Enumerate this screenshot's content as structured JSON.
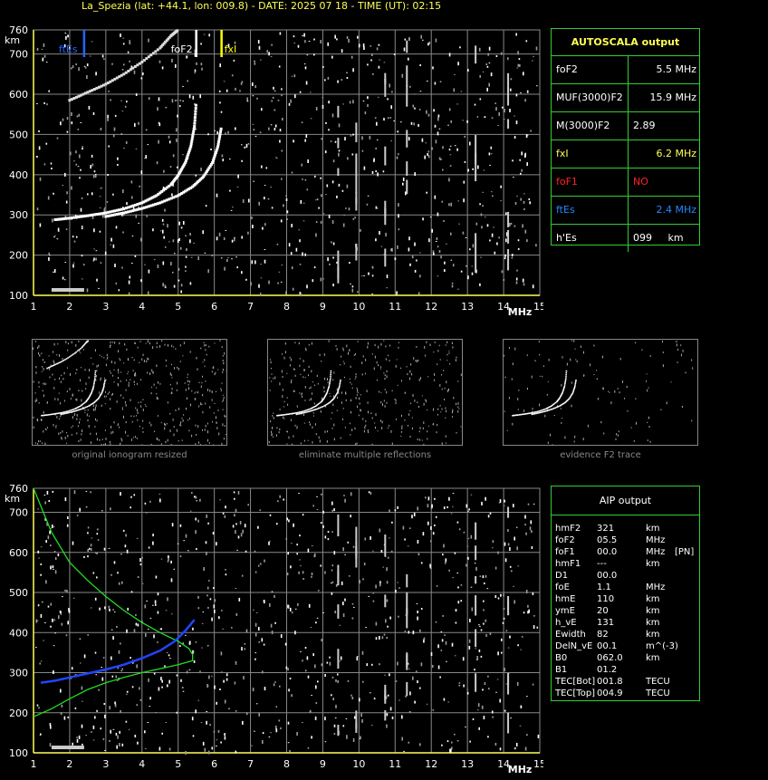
{
  "header": "La_Spezia (lat: +44.1, lon: 009.8) - DATE: 2025 07 18 - TIME (UT): 02:15",
  "colors": {
    "axis": "#ffff55",
    "grid": "#888888",
    "trace": "#ffffff",
    "profile": "#22dd22",
    "blue": "#2244ff",
    "fxi": "#ffff00",
    "ftes": "#2266ff",
    "fof1": "#ff2222",
    "white": "#ffffff"
  },
  "chart_data": [
    {
      "type": "scatter",
      "title": "",
      "xlabel": "MHz",
      "ylabel": "km",
      "xlim": [
        1,
        15
      ],
      "ylim": [
        100,
        760
      ],
      "xticks": [
        "1",
        "2",
        "3",
        "4",
        "5",
        "6",
        "7",
        "8",
        "9",
        "10",
        "11",
        "12",
        "13",
        "14",
        "15"
      ],
      "yticks": [
        "760",
        "700",
        "600",
        "500",
        "400",
        "300",
        "200",
        "100"
      ],
      "markers": [
        {
          "label": "ftEs",
          "x": 2.4,
          "color": "#2266ff"
        },
        {
          "label": "foF2",
          "x": 5.5,
          "color": "#ffffff"
        },
        {
          "label": "fxI",
          "x": 6.2,
          "color": "#ffff00"
        }
      ],
      "traces": [
        {
          "name": "o-trace",
          "points": [
            [
              1.6,
              288
            ],
            [
              2.0,
              292
            ],
            [
              2.5,
              298
            ],
            [
              3.0,
              305
            ],
            [
              3.5,
              315
            ],
            [
              4.0,
              330
            ],
            [
              4.4,
              348
            ],
            [
              4.8,
              375
            ],
            [
              5.0,
              398
            ],
            [
              5.2,
              430
            ],
            [
              5.35,
              470
            ],
            [
              5.45,
              520
            ],
            [
              5.5,
              580
            ]
          ]
        },
        {
          "name": "x-trace",
          "points": [
            [
              3.0,
              296
            ],
            [
              3.5,
              305
            ],
            [
              4.0,
              316
            ],
            [
              4.5,
              330
            ],
            [
              5.0,
              348
            ],
            [
              5.4,
              370
            ],
            [
              5.7,
              395
            ],
            [
              5.95,
              430
            ],
            [
              6.1,
              470
            ],
            [
              6.2,
              520
            ]
          ]
        },
        {
          "name": "second-hop",
          "points": [
            [
              2.0,
              585
            ],
            [
              2.5,
              605
            ],
            [
              3.0,
              625
            ],
            [
              3.5,
              650
            ],
            [
              4.0,
              680
            ],
            [
              4.5,
              715
            ],
            [
              4.8,
              745
            ],
            [
              5.0,
              760
            ]
          ]
        }
      ]
    },
    {
      "type": "scatter",
      "title": "",
      "xlabel": "MHz",
      "ylabel": "km",
      "xlim": [
        1,
        15
      ],
      "ylim": [
        100,
        760
      ],
      "xticks": [
        "1",
        "2",
        "3",
        "4",
        "5",
        "6",
        "7",
        "8",
        "9",
        "10",
        "11",
        "12",
        "13",
        "14",
        "15"
      ],
      "yticks": [
        "760",
        "700",
        "600",
        "500",
        "400",
        "300",
        "200",
        "100"
      ],
      "profile_green": [
        [
          1.0,
          760
        ],
        [
          1.5,
          650
        ],
        [
          2.0,
          575
        ],
        [
          2.5,
          530
        ],
        [
          3.0,
          490
        ],
        [
          3.5,
          455
        ],
        [
          4.0,
          425
        ],
        [
          4.5,
          400
        ],
        [
          5.0,
          378
        ],
        [
          5.3,
          360
        ],
        [
          5.4,
          345
        ],
        [
          5.4,
          330
        ],
        [
          5.0,
          320
        ],
        [
          4.5,
          310
        ],
        [
          4.0,
          300
        ],
        [
          3.5,
          288
        ],
        [
          3.0,
          275
        ],
        [
          2.5,
          258
        ],
        [
          2.0,
          235
        ],
        [
          1.5,
          210
        ],
        [
          1.0,
          190
        ]
      ],
      "profile_blue": [
        [
          1.2,
          275
        ],
        [
          1.6,
          280
        ],
        [
          2.0,
          288
        ],
        [
          2.5,
          298
        ],
        [
          3.0,
          308
        ],
        [
          3.5,
          320
        ],
        [
          4.0,
          336
        ],
        [
          4.5,
          355
        ],
        [
          4.9,
          378
        ],
        [
          5.2,
          405
        ],
        [
          5.45,
          432
        ]
      ]
    }
  ],
  "autoscala": {
    "title": "AUTOSCALA output",
    "rows": [
      {
        "key": "foF2",
        "value": "5.5 MHz",
        "color": "#ffffff",
        "align": "right"
      },
      {
        "key": "MUF(3000)F2",
        "value": "15.9 MHz",
        "color": "#ffffff",
        "align": "right"
      },
      {
        "key": "M(3000)F2",
        "value": "2.89",
        "color": "#ffffff",
        "align": "left"
      },
      {
        "key": "fxI",
        "value": "6.2 MHz",
        "color": "#ffff55",
        "align": "right"
      },
      {
        "key": "foF1",
        "value": "NO",
        "color": "#ff2222",
        "align": "left"
      },
      {
        "key": "ftEs",
        "value": "2.4 MHz",
        "color": "#2288ff",
        "align": "right"
      },
      {
        "key": "h'Es",
        "value": "099     km",
        "color": "#ffffff",
        "align": "left"
      }
    ]
  },
  "thumbnails": [
    {
      "caption": "original ionogram resized"
    },
    {
      "caption": "eliminate multiple reflections"
    },
    {
      "caption": "evidence F2 trace"
    }
  ],
  "aip": {
    "title": "AIP output",
    "lines": [
      [
        "hmF2",
        "321",
        "km",
        ""
      ],
      [
        "foF2",
        "05.5",
        "MHz",
        ""
      ],
      [
        "foF1",
        "00.0",
        "MHz",
        "[PN]"
      ],
      [
        "hmF1",
        "---",
        "km",
        ""
      ],
      [
        "D1",
        "00.0",
        "",
        ""
      ],
      [
        "foE",
        "1.1",
        "MHz",
        ""
      ],
      [
        "hmE",
        "110",
        "km",
        ""
      ],
      [
        "ymE",
        "20",
        "km",
        ""
      ],
      [
        "h_vE",
        "131",
        "km",
        ""
      ],
      [
        "Ewidth",
        "82",
        "km",
        ""
      ],
      [
        "DelN_vE",
        "00.1",
        "m^(-3)",
        ""
      ],
      [
        "B0",
        "062.0",
        "km",
        ""
      ],
      [
        "B1",
        "01.2",
        "",
        ""
      ],
      [
        "TEC[Bot]",
        "001.8",
        "TECU",
        ""
      ],
      [
        "TEC[Top]",
        "004.9",
        "TECU",
        ""
      ]
    ]
  }
}
